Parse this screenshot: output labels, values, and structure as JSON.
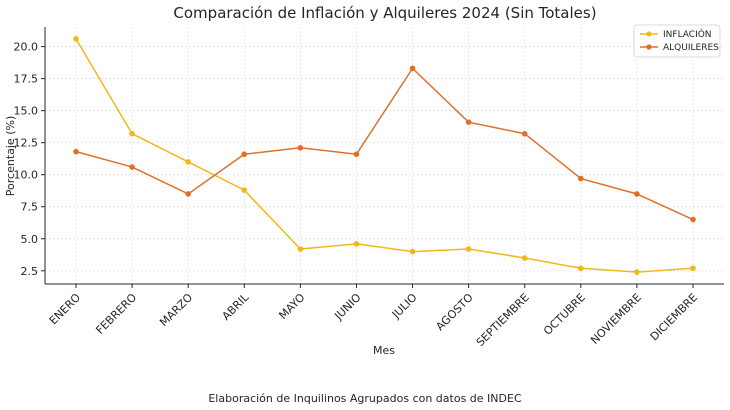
{
  "chart_data": {
    "type": "line",
    "title": "Comparación de Inflación y Alquileres 2024 (Sin Totales)",
    "xlabel": "Mes",
    "ylabel": "Porcentaje (%)",
    "categories": [
      "ENERO",
      "FEBRERO",
      "MARZO",
      "ABRIL",
      "MAYO",
      "JUNIO",
      "JULIO",
      "AGOSTO",
      "SEPTIEMBRE",
      "OCTUBRE",
      "NOVIEMBRE",
      "DICIEMBRE"
    ],
    "series": [
      {
        "name": "INFLACIÓN",
        "color": "#f0b818",
        "values": [
          20.6,
          13.2,
          11.0,
          8.8,
          4.2,
          4.6,
          4.0,
          4.2,
          3.5,
          2.7,
          2.4,
          2.7
        ]
      },
      {
        "name": "ALQUILERES",
        "color": "#e07028",
        "values": [
          11.8,
          10.6,
          8.5,
          11.6,
          12.1,
          11.6,
          18.3,
          14.1,
          13.2,
          9.7,
          8.5,
          6.5
        ]
      }
    ],
    "yticks": [
      2.5,
      5.0,
      7.5,
      10.0,
      12.5,
      15.0,
      17.5,
      20.0
    ],
    "ytick_labels": [
      "2.5",
      "5.0",
      "7.5",
      "10.0",
      "12.5",
      "15.0",
      "17.5",
      "20.0"
    ],
    "ylim": [
      1.47,
      21.53
    ],
    "grid": true,
    "legend_position": "top-right"
  },
  "footer": "Elaboración de Inquilinos Agrupados con datos de INDEC"
}
